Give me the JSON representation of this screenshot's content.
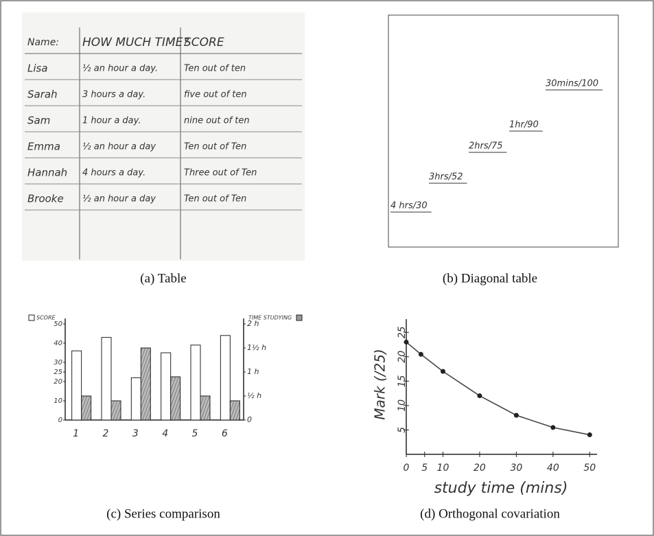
{
  "panels": [
    {
      "caption": "(a) Table",
      "table": {
        "header": [
          "Name:",
          "HOW MUCH TIME?",
          "SCORE"
        ],
        "rows": [
          [
            "Lisa",
            "½ an hour a day.",
            "Ten out of ten"
          ],
          [
            "Sarah",
            "3 hours a day.",
            "five out of ten"
          ],
          [
            "Sam",
            "1 hour a day.",
            "nine out of ten"
          ],
          [
            "Emma",
            "½ an hour a day",
            "Ten out of Ten"
          ],
          [
            "Hannah",
            "4 hours a day.",
            "Three out of Ten"
          ],
          [
            "Brooke",
            "½ an hour a day",
            "Ten out of Ten"
          ]
        ]
      }
    },
    {
      "caption": "(b) Diagonal table",
      "entries": [
        "30mins/100",
        "1hr/90",
        "2hrs/75",
        "3hrs/52",
        "4 hrs/30"
      ]
    },
    {
      "caption": "(c) Series comparison",
      "chart": {
        "type": "bar",
        "categories": [
          "1",
          "2",
          "3",
          "4",
          "5",
          "6"
        ],
        "series": [
          {
            "name": "SCORE",
            "color": "#ffffff",
            "values": [
              36,
              43,
              22,
              35,
              39,
              44
            ]
          },
          {
            "name": "TIME STUDYING",
            "color": "#9a9a9a",
            "axis": "y2",
            "values": [
              0.5,
              0.4,
              1.5,
              0.9,
              0.5,
              0.4
            ]
          }
        ],
        "ylim": [
          0,
          50
        ],
        "yticks": [
          0,
          10,
          20,
          25,
          30,
          40,
          50
        ],
        "y2lim": [
          0,
          2
        ],
        "y2ticks": [
          {
            "value": 0,
            "label": "0"
          },
          {
            "value": 0.5,
            "label": "½ h"
          },
          {
            "value": 1,
            "label": "1 h"
          },
          {
            "value": 1.5,
            "label": "1½ h"
          },
          {
            "value": 2,
            "label": "2 h"
          }
        ]
      }
    },
    {
      "caption": "(d) Orthogonal covariation",
      "chart": {
        "type": "line",
        "x_label": "study time (mins)",
        "y_label": "Mark (/25)",
        "x": [
          0,
          4,
          10,
          20,
          30,
          40,
          50
        ],
        "values": [
          23,
          20.5,
          17,
          12,
          8,
          5.5,
          4
        ],
        "xlim": [
          0,
          52
        ],
        "ylim": [
          0,
          27
        ],
        "xticks": [
          0,
          5,
          10,
          20,
          30,
          40,
          50
        ],
        "yticks": [
          5,
          10,
          15,
          20,
          25
        ]
      }
    }
  ]
}
